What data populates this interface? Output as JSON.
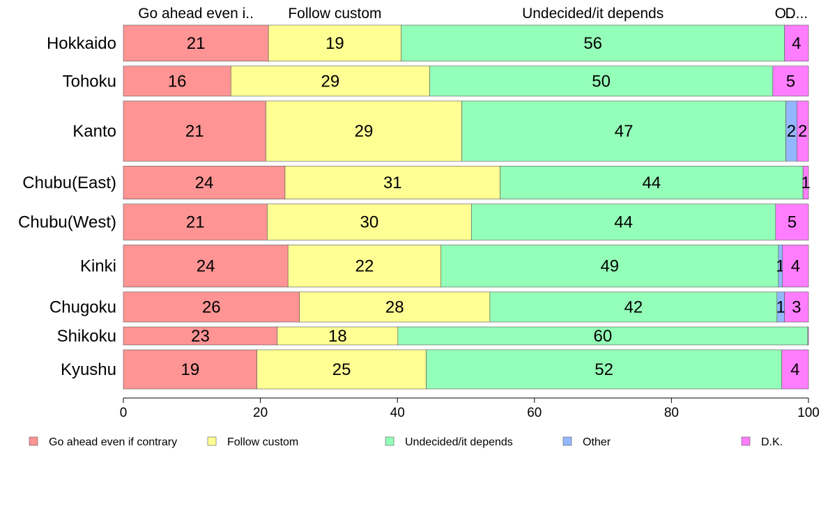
{
  "chart_data": {
    "type": "bar",
    "orientation": "horizontal",
    "stacked": true,
    "categories": [
      "Hokkaido",
      "Tohoku",
      "Kanto",
      "Chubu(East)",
      "Chubu(West)",
      "Kinki",
      "Chugoku",
      "Shikoku",
      "Kyushu"
    ],
    "column_width_weights": [
      0.6,
      0.5,
      1.0,
      0.55,
      0.6,
      0.7,
      0.5,
      0.3,
      0.65
    ],
    "series": [
      {
        "name": "Go ahead even if contrary",
        "short": "Go ahead even i..",
        "color": "#ff9494",
        "values": [
          21.2,
          15.7,
          20.8,
          23.6,
          21.0,
          24.1,
          25.7,
          22.5,
          19.5
        ]
      },
      {
        "name": "Follow custom",
        "short": "Follow custom",
        "color": "#ffff94",
        "values": [
          19.4,
          29.0,
          28.6,
          31.4,
          29.8,
          22.4,
          27.8,
          17.6,
          24.7
        ]
      },
      {
        "name": "Undecided/it depends",
        "short": "Undecided/it depends",
        "color": "#94ffb8",
        "values": [
          56.0,
          50.1,
          47.3,
          44.2,
          44.4,
          49.4,
          41.9,
          59.9,
          51.9
        ]
      },
      {
        "name": "Other",
        "short": "O..",
        "color": "#94b8ff",
        "values": [
          0,
          0,
          1.6,
          0,
          0,
          0.6,
          1.1,
          0,
          0
        ]
      },
      {
        "name": "D.K.",
        "short": "D...",
        "color": "#ff7eff",
        "values": [
          3.5,
          5.2,
          1.7,
          0.8,
          4.8,
          3.8,
          3.5,
          0.1,
          3.9
        ]
      }
    ],
    "data_labels": [
      [
        "21",
        "19",
        "56",
        "",
        "4"
      ],
      [
        "16",
        "29",
        "50",
        "",
        "5"
      ],
      [
        "21",
        "29",
        "47",
        "2",
        "2"
      ],
      [
        "24",
        "31",
        "44",
        "",
        "1"
      ],
      [
        "21",
        "30",
        "44",
        "",
        "5"
      ],
      [
        "24",
        "22",
        "49",
        "1",
        "4"
      ],
      [
        "26",
        "28",
        "42",
        "1",
        "3"
      ],
      [
        "23",
        "18",
        "60",
        "",
        ""
      ],
      [
        "19",
        "25",
        "52",
        "",
        "4"
      ]
    ],
    "xlim": [
      0,
      100
    ],
    "xticks": [
      "0",
      "20",
      "40",
      "60",
      "80",
      "100"
    ],
    "xlabel": "",
    "ylabel": "",
    "title": "",
    "grid": false,
    "legend_position": "bottom"
  }
}
